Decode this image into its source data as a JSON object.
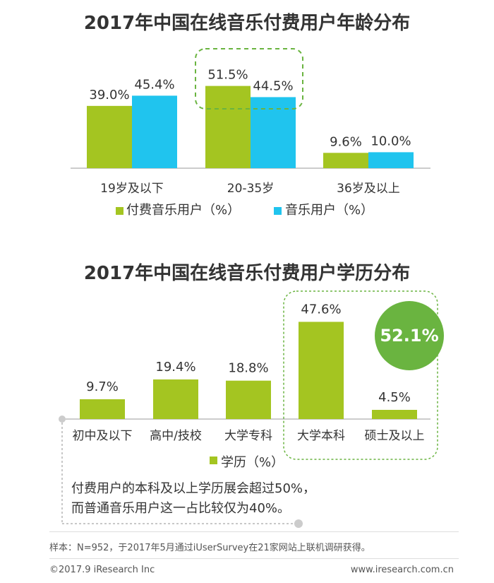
{
  "colors": {
    "paid_green": "#a4c521",
    "music_cyan": "#20c4ee",
    "badge_green": "#6ab440",
    "dash_green": "#6ab440",
    "axis_gray": "#999999"
  },
  "chart_data": [
    {
      "type": "bar",
      "title": "2017年中国在线音乐付费用户年龄分布",
      "categories": [
        "19岁及以下",
        "20-35岁",
        "36岁及以上"
      ],
      "series": [
        {
          "name": "付费音乐用户（%）",
          "values": [
            39.0,
            51.5,
            9.6
          ],
          "labels": [
            "39.0%",
            "51.5%",
            "9.6%"
          ]
        },
        {
          "name": "音乐用户（%）",
          "values": [
            45.4,
            44.5,
            10.0
          ],
          "labels": [
            "45.4%",
            "44.5%",
            "10.0%"
          ]
        }
      ],
      "ylim": [
        0,
        60
      ],
      "legend": "bottom",
      "grid": false
    },
    {
      "type": "bar",
      "title": "2017年中国在线音乐付费用户学历分布",
      "categories": [
        "初中及以下",
        "高中/技校",
        "大学专科",
        "大学本科",
        "硕士及以上"
      ],
      "series": [
        {
          "name": "学历（%）",
          "values": [
            9.7,
            19.4,
            18.8,
            47.6,
            4.5
          ],
          "labels": [
            "9.7%",
            "19.4%",
            "18.8%",
            "47.6%",
            "4.5%"
          ]
        }
      ],
      "ylim": [
        0,
        50
      ],
      "legend": "bottom",
      "grid": false,
      "highlight": {
        "value": 52.1,
        "label": "52.1%"
      }
    }
  ],
  "note": {
    "line1": "付费用户的本科及以上学历展会超过50%，",
    "line2": "而普通音乐用户这一占比较仅为40%。"
  },
  "footer": {
    "sample": "样本：N=952，于2017年5月通过iUserSurvey在21家网站上联机调研获得。",
    "copyright": "©2017.9 iResearch Inc",
    "website": "www.iresearch.com.cn"
  }
}
